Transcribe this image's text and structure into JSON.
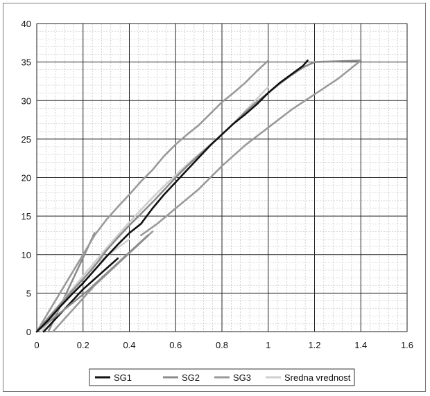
{
  "chart_data": {
    "type": "line",
    "title": "",
    "xlabel": "",
    "ylabel": "",
    "xlim": [
      0,
      1.6
    ],
    "ylim": [
      0,
      40
    ],
    "x_ticks": [
      0,
      0.2,
      0.4,
      0.6,
      0.8,
      1,
      1.2,
      1.4,
      1.6
    ],
    "x_tick_labels": [
      "0",
      "0.2",
      "0.4",
      "0.6",
      "0.8",
      "1",
      "1.2",
      "1.4",
      "1.6"
    ],
    "y_ticks": [
      0,
      5,
      10,
      15,
      20,
      25,
      30,
      35,
      40
    ],
    "y_tick_labels": [
      "0",
      "5",
      "10",
      "15",
      "20",
      "25",
      "30",
      "35",
      "40"
    ],
    "grid": "major solid, minor dashed",
    "legend": "bottom",
    "series": [
      {
        "name": "SG1",
        "color": "#111111",
        "points": [
          [
            0,
            0
          ],
          [
            0.05,
            1.5
          ],
          [
            0.1,
            3.2
          ],
          [
            0.15,
            4.8
          ],
          [
            0.2,
            6.3
          ],
          [
            0.25,
            8
          ],
          [
            0.3,
            9.7
          ],
          [
            0.35,
            11.3
          ],
          [
            0.4,
            12.8
          ],
          [
            0.45,
            14
          ],
          [
            0.5,
            16
          ],
          [
            0.55,
            17.8
          ],
          [
            0.6,
            19.4
          ],
          [
            0.65,
            21
          ],
          [
            0.7,
            22.6
          ],
          [
            0.75,
            24.2
          ],
          [
            0.8,
            25.6
          ],
          [
            0.85,
            27
          ],
          [
            0.9,
            28.2
          ],
          [
            0.95,
            29.5
          ],
          [
            1.0,
            31
          ],
          [
            1.05,
            32.3
          ],
          [
            1.1,
            33.4
          ],
          [
            1.15,
            34.5
          ],
          [
            1.17,
            35.2
          ]
        ]
      },
      {
        "name": "SG2",
        "color": "#8c8c8c",
        "points": [
          [
            0,
            0
          ],
          [
            0.05,
            1.8
          ],
          [
            0.1,
            3.5
          ],
          [
            0.15,
            5.2
          ],
          [
            0.2,
            6.8
          ],
          [
            0.25,
            8.5
          ],
          [
            0.3,
            10.5
          ],
          [
            0.35,
            12.2
          ],
          [
            0.4,
            13.8
          ],
          [
            0.45,
            15.3
          ],
          [
            0.5,
            16.8
          ],
          [
            0.55,
            18.4
          ],
          [
            0.6,
            20
          ],
          [
            0.65,
            21.5
          ],
          [
            0.7,
            22.9
          ],
          [
            0.75,
            24.2
          ],
          [
            0.8,
            25.6
          ],
          [
            0.85,
            27
          ],
          [
            0.9,
            28.5
          ],
          [
            0.95,
            29.8
          ],
          [
            1.0,
            31
          ],
          [
            1.05,
            32.2
          ],
          [
            1.1,
            33.3
          ],
          [
            1.15,
            34.3
          ],
          [
            1.2,
            35
          ],
          [
            1.4,
            35.2
          ]
        ]
      },
      {
        "name": "SG3",
        "color": "#9a9a9a",
        "points": [
          [
            0,
            0
          ],
          [
            0.05,
            2.5
          ],
          [
            0.1,
            5
          ],
          [
            0.15,
            7.5
          ],
          [
            0.2,
            10
          ],
          [
            0.25,
            12.5
          ],
          [
            0.3,
            14.5
          ],
          [
            0.35,
            16.2
          ],
          [
            0.4,
            17.8
          ],
          [
            0.45,
            19.5
          ],
          [
            0.5,
            21
          ],
          [
            0.55,
            22.8
          ],
          [
            0.6,
            24.3
          ],
          [
            0.65,
            25.6
          ],
          [
            0.7,
            26.8
          ],
          [
            0.75,
            28.3
          ],
          [
            0.8,
            29.8
          ],
          [
            0.85,
            31
          ],
          [
            0.9,
            32.3
          ],
          [
            0.95,
            33.8
          ],
          [
            1.0,
            35.2
          ]
        ]
      },
      {
        "name": "Sredna vrednost",
        "color": "#cfcfcf",
        "points": [
          [
            0,
            0
          ],
          [
            0.05,
            1.8
          ],
          [
            0.1,
            3.6
          ],
          [
            0.15,
            5.4
          ],
          [
            0.2,
            7.2
          ],
          [
            0.25,
            9
          ],
          [
            0.3,
            10.8
          ],
          [
            0.35,
            12.5
          ],
          [
            0.4,
            14.2
          ],
          [
            0.45,
            15.8
          ],
          [
            0.5,
            17.4
          ],
          [
            0.55,
            18.9
          ],
          [
            0.6,
            20.3
          ],
          [
            0.65,
            21.7
          ],
          [
            0.7,
            23
          ],
          [
            0.75,
            24.3
          ],
          [
            0.8,
            25.6
          ],
          [
            0.85,
            27
          ],
          [
            0.9,
            28.6
          ],
          [
            0.95,
            30.2
          ],
          [
            1.0,
            31.8
          ]
        ]
      }
    ],
    "extra_lines": [
      {
        "color": "#8c8c8c",
        "points": [
          [
            0.05,
            0
          ],
          [
            0.25,
            12.8
          ]
        ]
      },
      {
        "color": "#9a9a9a",
        "points": [
          [
            0.07,
            0
          ],
          [
            0.25,
            6
          ],
          [
            0.5,
            13
          ]
        ]
      },
      {
        "color": "#cfcfcf",
        "points": [
          [
            0.02,
            0
          ],
          [
            0.22,
            8
          ],
          [
            0.4,
            12
          ]
        ]
      },
      {
        "color": "#111111",
        "points": [
          [
            0.03,
            0
          ],
          [
            0.2,
            5.5
          ],
          [
            0.35,
            9.5
          ]
        ]
      },
      {
        "color": "#8c8c8c",
        "points": [
          [
            0.0,
            0
          ],
          [
            0.22,
            5.3
          ],
          [
            0.48,
            12.5
          ]
        ]
      },
      {
        "color": "#9a9a9a",
        "points": [
          [
            0.6,
            16
          ],
          [
            0.7,
            18.5
          ],
          [
            0.8,
            21.5
          ],
          [
            0.9,
            24.2
          ],
          [
            1.0,
            26.5
          ],
          [
            1.1,
            28.8
          ],
          [
            1.2,
            30.8
          ],
          [
            1.3,
            32.8
          ],
          [
            1.4,
            35.2
          ]
        ]
      },
      {
        "color": "#9a9a9a",
        "points": [
          [
            0.45,
            12.5
          ],
          [
            0.52,
            14
          ],
          [
            0.6,
            16
          ]
        ]
      }
    ]
  }
}
